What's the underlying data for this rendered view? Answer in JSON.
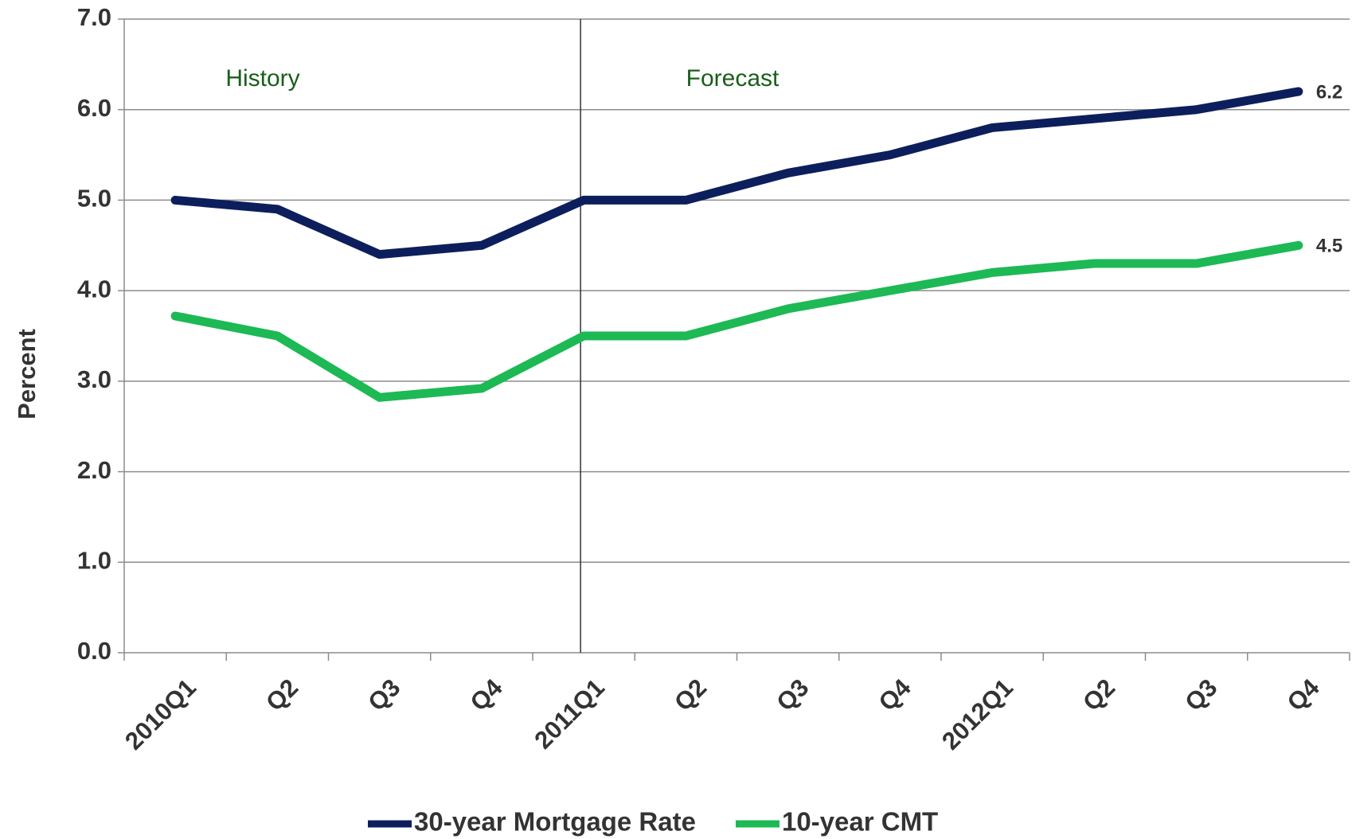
{
  "chart_data": {
    "type": "line",
    "y_label": "Percent",
    "annotations": [
      "History",
      "Forecast"
    ],
    "categories": [
      "2010Q1",
      "Q2",
      "Q3",
      "Q4",
      "2011Q1",
      "Q2",
      "Q3",
      "Q4",
      "2012Q1",
      "Q2",
      "Q3",
      "Q4"
    ],
    "series": [
      {
        "name": "30-year Mortgage Rate",
        "color": "#0c1f5c",
        "values": [
          5.0,
          4.9,
          4.4,
          4.5,
          5.0,
          5.0,
          5.3,
          5.5,
          5.8,
          5.9,
          6.0,
          6.2
        ]
      },
      {
        "name": "10-year CMT",
        "color": "#1db954",
        "values": [
          3.72,
          3.5,
          2.82,
          2.92,
          3.5,
          3.5,
          3.8,
          4.0,
          4.2,
          4.3,
          4.3,
          4.5
        ]
      }
    ],
    "ylim": [
      0,
      7
    ],
    "yticks": [
      {
        "value": 0,
        "label": "0.0"
      },
      {
        "value": 1,
        "label": "1.0"
      },
      {
        "value": 2,
        "label": "2.0"
      },
      {
        "value": 3,
        "label": "3.0"
      },
      {
        "value": 4,
        "label": "4.0"
      },
      {
        "value": 5,
        "label": "5.0"
      },
      {
        "value": 6,
        "label": "6.0"
      },
      {
        "value": 7,
        "label": "7.0"
      }
    ],
    "grid": true,
    "legend": "bottom"
  }
}
